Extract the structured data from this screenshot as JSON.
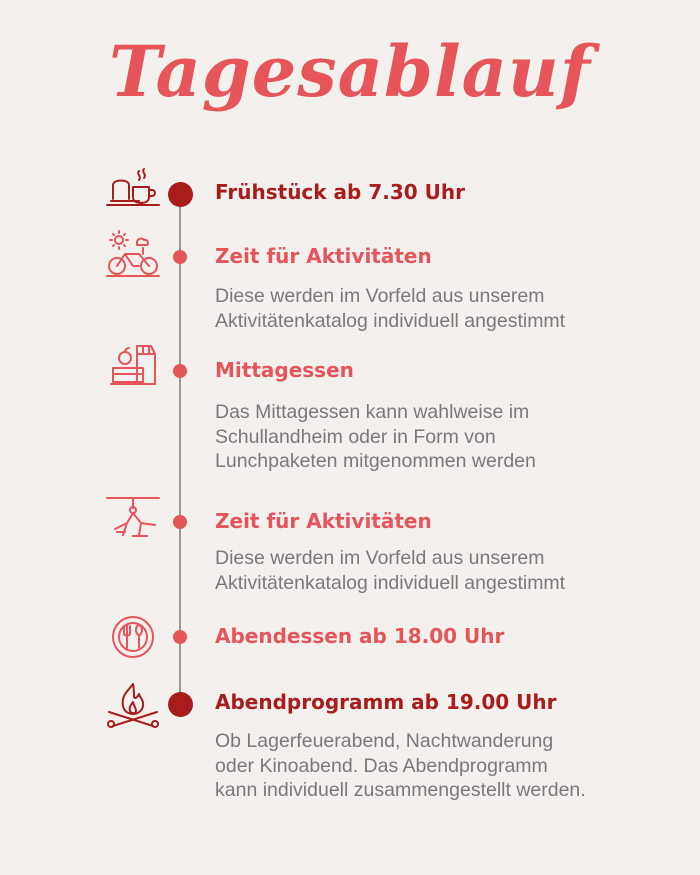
{
  "title": "Tagesablauf",
  "colors": {
    "background": "#f4f0ed",
    "accent_dark": "#a81c1c",
    "accent_light": "#e5555a",
    "text": "#7c7878",
    "line": "#9a9696"
  },
  "items": [
    {
      "icon": "breakfast-icon",
      "heading": "Frühstück ab 7.30 Uhr",
      "lines": []
    },
    {
      "icon": "bicycle-icon",
      "heading": "Zeit für Aktivitäten",
      "lines": [
        "Diese werden im Vorfeld aus unserem",
        "Aktivitätenkatalog individuell angestimmt"
      ]
    },
    {
      "icon": "lunchbox-icon",
      "heading": "Mittagessen",
      "lines": [
        "Das Mittagessen kann wahlweise im",
        "Schullandheim oder in Form von",
        "Lunchpaketen mitgenommen werden"
      ]
    },
    {
      "icon": "zipline-icon",
      "heading": "Zeit für Aktivitäten",
      "lines": [
        "Diese werden im Vorfeld aus unserem",
        "Aktivitätenkatalog individuell angestimmt"
      ]
    },
    {
      "icon": "plate-cutlery-icon",
      "heading": "Abendessen ab 18.00 Uhr",
      "lines": []
    },
    {
      "icon": "campfire-icon",
      "heading": "Abendprogramm ab 19.00 Uhr",
      "lines": [
        "Ob Lagerfeuerabend, Nachtwanderung",
        "oder Kinoabend. Das Abendprogramm",
        "kann individuell zusammengestellt werden."
      ]
    }
  ]
}
